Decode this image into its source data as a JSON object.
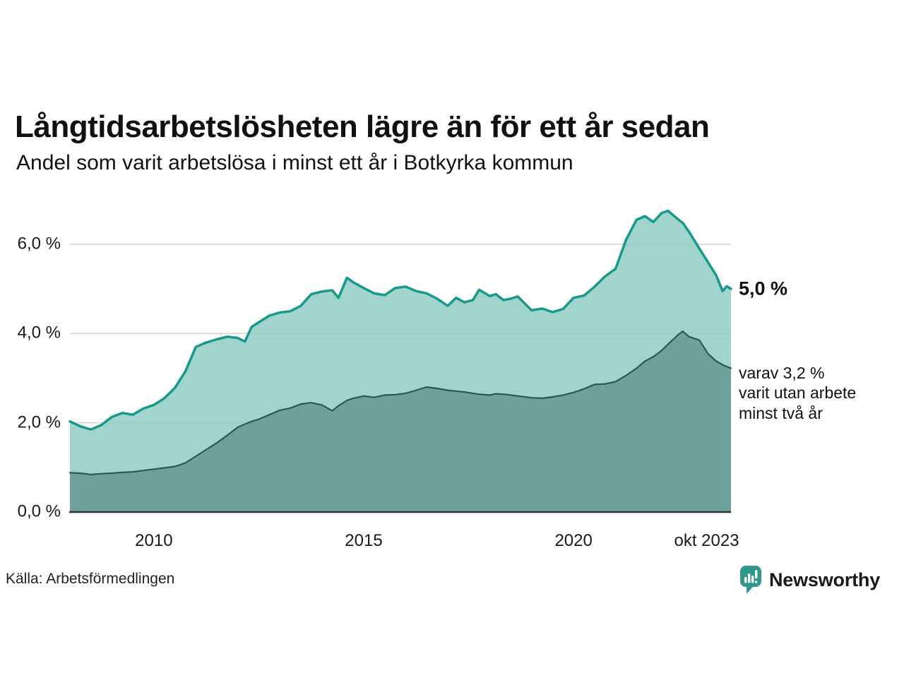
{
  "title": "Långtidsarbetslösheten lägre än för ett år sedan",
  "subtitle": "Andel som varit arbetslösa i minst ett år i Botkyrka kommun",
  "source": "Källa: Arbetsförmedlingen",
  "logo": {
    "text": "Newsworthy"
  },
  "annotations": {
    "latest_value": "5,0 %",
    "secondary": "varav 3,2 %\nvarit utan arbete\nminst två år"
  },
  "colors": {
    "background": "#ffffff",
    "gridline": "#d2d2d2",
    "axis_line": "#333333",
    "text": "#1a1a1a",
    "brand_teal": "#2f978c"
  },
  "chart_data": {
    "type": "area",
    "title": "Långtidsarbetslösheten lägre än för ett år sedan",
    "xlabel": "",
    "ylabel": "",
    "grid": true,
    "legend": false,
    "ylim": [
      0,
      6.9
    ],
    "y_ticks": [
      {
        "label": "0,0 %",
        "value": 0
      },
      {
        "label": "2,0 %",
        "value": 2
      },
      {
        "label": "4,0 %",
        "value": 4
      },
      {
        "label": "6,0 %",
        "value": 6
      }
    ],
    "x_ticks": [
      {
        "label": "2010",
        "year": 2010
      },
      {
        "label": "2015",
        "year": 2015
      },
      {
        "label": "2020",
        "year": 2020
      },
      {
        "label": "okt 2023",
        "year": 2023.17
      }
    ],
    "x": [
      2008,
      2008.25,
      2008.5,
      2008.75,
      2009,
      2009.25,
      2009.5,
      2009.75,
      2010,
      2010.25,
      2010.5,
      2010.75,
      2011,
      2011.25,
      2011.5,
      2011.75,
      2012,
      2012.17,
      2012.33,
      2012.5,
      2012.75,
      2013,
      2013.25,
      2013.5,
      2013.75,
      2014,
      2014.25,
      2014.4,
      2014.6,
      2014.75,
      2015,
      2015.25,
      2015.5,
      2015.75,
      2016,
      2016.25,
      2016.5,
      2016.75,
      2017,
      2017.2,
      2017.4,
      2017.6,
      2017.75,
      2018,
      2018.15,
      2018.33,
      2018.5,
      2018.67,
      2019,
      2019.25,
      2019.5,
      2019.75,
      2020,
      2020.25,
      2020.5,
      2020.75,
      2021,
      2021.25,
      2021.5,
      2021.7,
      2021.9,
      2022.1,
      2022.25,
      2022.5,
      2022.6,
      2022.75,
      2023,
      2023.2,
      2023.4,
      2023.55,
      2023.65,
      2023.75
    ],
    "series": [
      {
        "name": "arbetslösa minst ett år",
        "line_color": "#17998b",
        "fill_color": "#8fccc3",
        "line_width": 3.5,
        "values": [
          2.03,
          1.92,
          1.85,
          1.95,
          2.13,
          2.22,
          2.18,
          2.32,
          2.4,
          2.55,
          2.78,
          3.15,
          3.7,
          3.8,
          3.87,
          3.93,
          3.9,
          3.82,
          4.15,
          4.25,
          4.4,
          4.47,
          4.5,
          4.62,
          4.88,
          4.94,
          4.97,
          4.8,
          5.25,
          5.15,
          5.02,
          4.9,
          4.86,
          5.02,
          5.05,
          4.95,
          4.9,
          4.78,
          4.62,
          4.8,
          4.7,
          4.75,
          4.98,
          4.84,
          4.88,
          4.75,
          4.78,
          4.83,
          4.52,
          4.56,
          4.48,
          4.55,
          4.8,
          4.85,
          5.05,
          5.28,
          5.45,
          6.1,
          6.55,
          6.63,
          6.5,
          6.7,
          6.75,
          6.55,
          6.48,
          6.28,
          5.9,
          5.6,
          5.3,
          4.95,
          5.06,
          5.0
        ]
      },
      {
        "name": "varit utan arbete minst två år",
        "line_color": "#2c5951",
        "fill_color": "#659892",
        "line_width": 2.2,
        "values": [
          0.88,
          0.87,
          0.84,
          0.86,
          0.87,
          0.89,
          0.9,
          0.93,
          0.96,
          0.99,
          1.02,
          1.1,
          1.25,
          1.4,
          1.55,
          1.72,
          1.9,
          1.97,
          2.03,
          2.08,
          2.18,
          2.28,
          2.33,
          2.42,
          2.45,
          2.4,
          2.27,
          2.38,
          2.5,
          2.55,
          2.6,
          2.57,
          2.62,
          2.63,
          2.66,
          2.73,
          2.8,
          2.77,
          2.73,
          2.71,
          2.69,
          2.66,
          2.64,
          2.62,
          2.65,
          2.64,
          2.62,
          2.6,
          2.56,
          2.55,
          2.58,
          2.62,
          2.68,
          2.76,
          2.86,
          2.87,
          2.92,
          3.06,
          3.22,
          3.38,
          3.48,
          3.62,
          3.76,
          3.98,
          4.05,
          3.93,
          3.85,
          3.55,
          3.38,
          3.3,
          3.26,
          3.22
        ]
      }
    ]
  }
}
